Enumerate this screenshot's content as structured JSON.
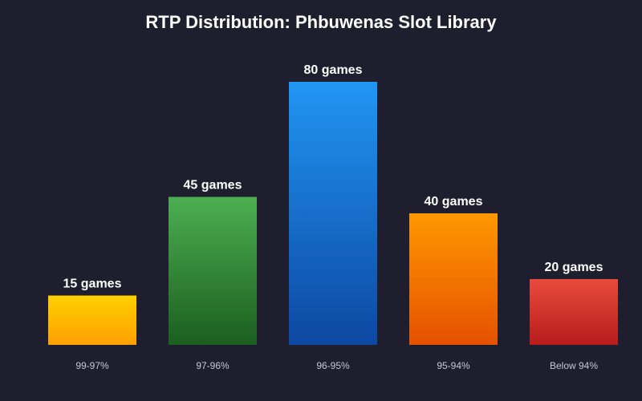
{
  "chart_data": {
    "type": "bar",
    "title": "RTP Distribution: Phbuwenas Slot Library",
    "xlabel": "",
    "ylabel": "",
    "ylim": [
      0,
      90
    ],
    "grid": false,
    "legend": "none",
    "categories": [
      "99-97%",
      "97-96%",
      "96-95%",
      "95-94%",
      "Below 94%"
    ],
    "values": [
      15,
      45,
      80,
      40,
      20
    ],
    "value_labels": [
      "15 games",
      "45 games",
      "80 games",
      "40 games",
      "20 games"
    ],
    "colors": [
      [
        "#ffd000",
        "#ff9f00"
      ],
      [
        "#4caf50",
        "#1b5e20"
      ],
      [
        "#2196f3",
        "#0d47a1"
      ],
      [
        "#ff9800",
        "#e65100"
      ],
      [
        "#e74c3c",
        "#b71c1c"
      ]
    ],
    "background": "#1e1e2f"
  }
}
